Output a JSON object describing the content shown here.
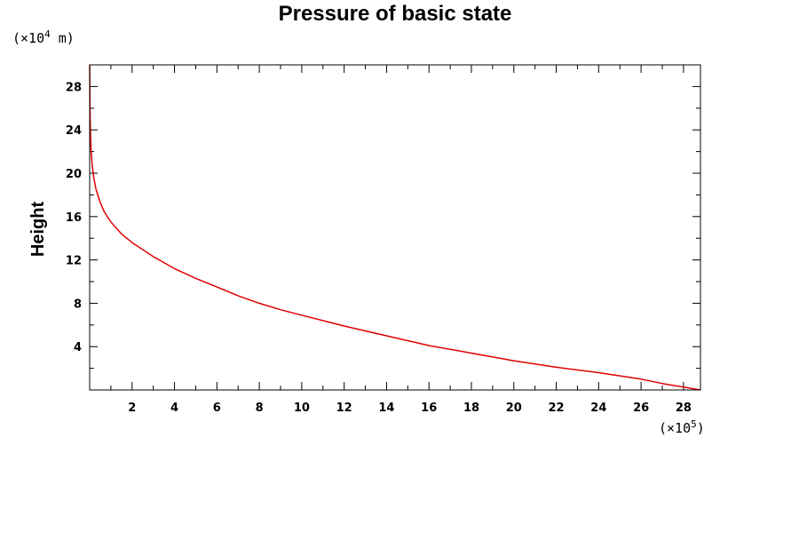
{
  "chart_data": {
    "type": "line",
    "title": "Pressure of basic state",
    "xlabel": "",
    "ylabel": "Height",
    "x_unit": {
      "prefix": "(×10",
      "exponent": "5",
      "suffix": ")"
    },
    "y_unit": {
      "prefix": "(×10",
      "exponent": "4",
      "suffix": " m)"
    },
    "xlim": [
      0,
      28.8
    ],
    "ylim": [
      0,
      30
    ],
    "x_ticks": [
      "2",
      "4",
      "6",
      "8",
      "10",
      "12",
      "14",
      "16",
      "18",
      "20",
      "22",
      "24",
      "26",
      "28"
    ],
    "y_ticks": [
      "4",
      "8",
      "12",
      "16",
      "20",
      "24",
      "28"
    ],
    "grid": false,
    "series": [
      {
        "color": "#e00000",
        "points": [
          [
            28.8,
            0.0
          ],
          [
            27.0,
            0.6
          ],
          [
            26.0,
            1.0
          ],
          [
            24.0,
            1.6
          ],
          [
            22.0,
            2.1
          ],
          [
            20.0,
            2.7
          ],
          [
            18.0,
            3.4
          ],
          [
            16.0,
            4.1
          ],
          [
            14.0,
            5.0
          ],
          [
            12.0,
            5.9
          ],
          [
            10.0,
            6.9
          ],
          [
            9.0,
            7.4
          ],
          [
            8.0,
            8.0
          ],
          [
            7.0,
            8.7
          ],
          [
            6.0,
            9.5
          ],
          [
            5.0,
            10.3
          ],
          [
            4.0,
            11.2
          ],
          [
            3.0,
            12.3
          ],
          [
            2.0,
            13.6
          ],
          [
            1.5,
            14.4
          ],
          [
            1.0,
            15.5
          ],
          [
            0.7,
            16.4
          ],
          [
            0.5,
            17.3
          ],
          [
            0.3,
            18.5
          ],
          [
            0.2,
            19.5
          ],
          [
            0.12,
            20.7
          ],
          [
            0.07,
            22.0
          ],
          [
            0.04,
            23.4
          ],
          [
            0.02,
            25.3
          ],
          [
            0.0,
            30.0
          ]
        ]
      }
    ]
  }
}
